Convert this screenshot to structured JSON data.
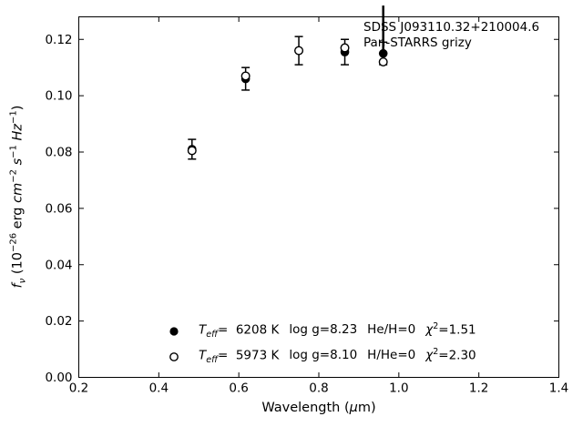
{
  "figure": {
    "background": "#ffffff",
    "foreground": "#000000"
  },
  "annotation": {
    "line1": "SDSS J093110.32+210004.6",
    "line2": "Pan-STARRS grizy"
  },
  "axis": {
    "xlabel_segments": [
      {
        "t": "Wavelength (",
        "style": ""
      },
      {
        "t": "μ",
        "style": "italic"
      },
      {
        "t": "m)",
        "style": ""
      }
    ],
    "ylabel_segments": [
      {
        "t": "f",
        "style": "italic"
      },
      {
        "t": "ν",
        "style": "sub-italic"
      },
      {
        "t": " (10",
        "style": ""
      },
      {
        "t": "−26",
        "style": "sup"
      },
      {
        "t": " erg ",
        "style": ""
      },
      {
        "t": "cm",
        "style": "italic"
      },
      {
        "t": "−2",
        "style": "sup"
      },
      {
        "t": " ",
        "style": ""
      },
      {
        "t": "s",
        "style": "italic"
      },
      {
        "t": "−1",
        "style": "sup"
      },
      {
        "t": " ",
        "style": ""
      },
      {
        "t": "Hz",
        "style": "italic"
      },
      {
        "t": "−1",
        "style": "sup"
      },
      {
        "t": ")",
        "style": ""
      }
    ]
  },
  "legend": {
    "rows": [
      {
        "marker": "filled-circle",
        "teff_symbol": "T",
        "teff_sub": "eff",
        "teff_value": "=  6208 K",
        "logg": "log g=8.23",
        "composition": "He/H=0",
        "chi_symbol": "χ",
        "chi_exp": "2",
        "chi_value": "=1.51"
      },
      {
        "marker": "open-circle",
        "teff_symbol": "T",
        "teff_sub": "eff",
        "teff_value": "=  5973 K",
        "logg": "log g=8.10",
        "composition": "H/He=0",
        "chi_symbol": "χ",
        "chi_exp": "2",
        "chi_value": "=2.30"
      }
    ]
  },
  "chart_data": {
    "type": "scatter",
    "title": "",
    "xlabel": "Wavelength (μm)",
    "ylabel": "f_ν (10^−26 erg cm^−2 s^−1 Hz^−1)",
    "xlim": [
      0.2,
      1.4
    ],
    "ylim": [
      0.0,
      0.128
    ],
    "xticks": [
      "0.2",
      "0.4",
      "0.6",
      "0.8",
      "1.0",
      "1.2",
      "1.4"
    ],
    "yticks": [
      "0.00",
      "0.02",
      "0.04",
      "0.06",
      "0.08",
      "0.10",
      "0.12"
    ],
    "grid": false,
    "tick_style": "inward on all four sides",
    "legend_position": "inside lower-left area of axes",
    "bands": [
      "g",
      "r",
      "i",
      "z",
      "y"
    ],
    "series": [
      {
        "name": "He/H=0 fit: Teff=6208 K, log g=8.23, chi2=1.51",
        "marker": "filled-circle",
        "x": [
          0.483,
          0.617,
          0.75,
          0.865,
          0.961
        ],
        "y": [
          0.081,
          0.106,
          0.116,
          0.1155,
          0.115
        ],
        "yerr": [
          0.0035,
          0.004,
          0.005,
          0.0045,
          0.004
        ]
      },
      {
        "name": "H/He=0 fit: Teff=5973 K, log g=8.10, chi2=2.30",
        "marker": "open-circle",
        "x": [
          0.483,
          0.617,
          0.75,
          0.865,
          0.961
        ],
        "y": [
          0.0805,
          0.107,
          0.116,
          0.117,
          0.112
        ]
      }
    ],
    "marker_line": {
      "x": 0.961,
      "y_from": 0.115,
      "y_to": 0.132
    }
  }
}
